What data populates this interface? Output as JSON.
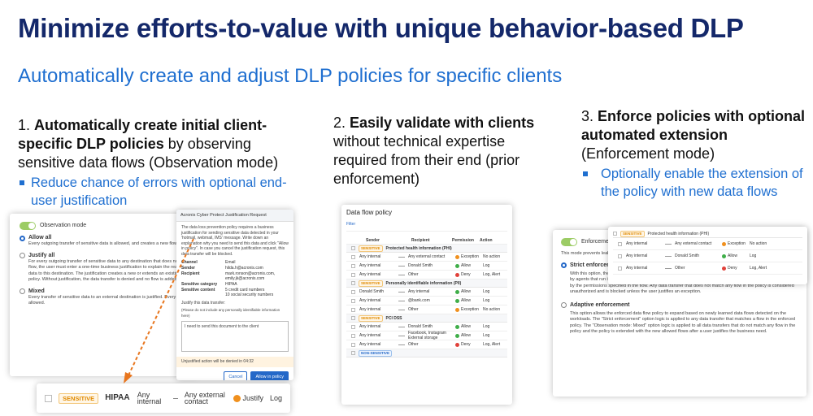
{
  "title": "Minimize efforts-to-value with unique behavior-based DLP",
  "subtitle": "Automatically create and adjust DLP policies for specific clients",
  "columns": [
    {
      "number": "1.",
      "bold": "Automatically create initial client-specific DLP policies",
      "text": "by observing sensitive data flows (Observation mode)",
      "bullet": "Reduce chance of errors with optional end-user justification"
    },
    {
      "number": "2.",
      "bold": "Easily validate with clients",
      "text": "without technical expertise required from their end (prior enforcement)"
    },
    {
      "number": "3.",
      "bold": "Enforce policies with optional automated extension",
      "text": "(Enforcement mode)",
      "bullet": "Optionally enable the extension of the policy with new data flows"
    }
  ],
  "permission_colors": {
    "Exception": "#f0901e",
    "Allow": "#3fae49",
    "Deny": "#e0413a",
    "Justify": "#f0901e"
  },
  "observation_panel": {
    "toggle_label": "Observation mode",
    "options": [
      {
        "label": "Allow all",
        "text": "Every outgoing transfer of sensitive data is allowed, and creates a new flow in the data flow policy."
      },
      {
        "label": "Justify all",
        "text": "For every outgoing transfer of sensitive data to any destination that does not match a created data flow, the user must enter a one-time business justification to explain the reason for transferring this data to this destination. The justification creates a new or extends an existing flow in the data flow policy. Without justification, the data transfer is denied and no flow is added."
      },
      {
        "label": "Mixed",
        "text": "Every transfer of sensitive data to an external destination is justified. Every internal transfer is allowed."
      }
    ]
  },
  "justification_dialog": {
    "title": "Acronis Cyber Protect Justification Request",
    "intro": "The data loss prevention policy requires a business justification for sending sensitive data detected in your 'hotmail, webmail, IMS' message. Write down an explanation why you need to send this data and click \"Allow in policy\". In case you cancel the justification request, this data transfer will be blocked.",
    "fields": [
      {
        "label": "Channel",
        "value": "Email"
      },
      {
        "label": "Sender",
        "value": "hilda.h@acronis.com"
      },
      {
        "label": "Recipient",
        "value": "mark.ronson@acronis.com,\nemily.jk@acronis.com"
      },
      {
        "label": "Sensitive category",
        "value": "HIPAA"
      },
      {
        "label": "Sensitive content",
        "value": "5 credit card numbers\n10 social security numbers"
      }
    ],
    "prompt": "Justify this data transfer:",
    "hint": "(Please do not include any personally identifiable information here)",
    "message": "I need to send this document to the client",
    "countdown": "Unjustified action will be denied in 04:32",
    "buttons": [
      "Cancel",
      "Allow in policy"
    ]
  },
  "zoom_row": {
    "tag": "SENSITIVE",
    "category": "HIPAA",
    "sender": "Any internal",
    "recipient": "Any external contact",
    "permission": "Justify",
    "action": "Log"
  },
  "data_flow_policy": {
    "title": "Data flow policy",
    "filter": "Filter",
    "headers": [
      "Sender",
      "Recipient",
      "Permission",
      "Action"
    ],
    "groups": [
      {
        "tag": "SENSITIVE",
        "name": "Protected health information (PHI)",
        "rows": [
          [
            "Any internal",
            "Any external contact",
            "Exception",
            "No action"
          ],
          [
            "Any internal",
            "Donald Smith",
            "Allow",
            "Log"
          ],
          [
            "Any internal",
            "Other",
            "Deny",
            "Log, Alert"
          ]
        ]
      },
      {
        "tag": "SENSITIVE",
        "name": "Personally identifiable information (PII)",
        "rows": [
          [
            "Donald Smith",
            "Any internal",
            "Allow",
            "Log"
          ],
          [
            "Any internal",
            "@bank.com",
            "Allow",
            "Log"
          ],
          [
            "Any internal",
            "Other",
            "Exception",
            "No action"
          ]
        ]
      },
      {
        "tag": "SENSITIVE",
        "name": "PCI DSS",
        "rows": [
          [
            "Any internal",
            "Donald Smith",
            "Allow",
            "Log"
          ],
          [
            "Any internal",
            "Facebook, Instagram\nExternal storage",
            "Allow",
            "Log"
          ],
          [
            "Any internal",
            "Other",
            "Deny",
            "Log, Alert"
          ]
        ]
      }
    ],
    "footer_tag": "NON-SENSITIVE"
  },
  "enforcement_panel": {
    "toggle_label": "Enforcement mode",
    "intro": "This mode prevents leakage of sensitive data according to the data flows and actions specified in the policy.",
    "options": [
      {
        "label": "Strict enforcement",
        "text": "With this option, the approved data flow policy is enforced as is—that is, without extending it with new flows detected by agents that run in the enforcement mode. Any data transfer that matches a flow in the enforced policy is controlled by the permissions specified in the flow. Any data transfer that does not match any flow in the policy is considered unauthorized and is blocked unless the user justifies an exception."
      },
      {
        "label": "Adaptive enforcement",
        "text": "This option allows the enforced data flow policy to expand based on newly learned data flows detected on the workloads. The \"Strict enforcement\" option logic is applied to any data transfer that matches a flow in the enforced policy. The \"Observation mode: Mixed\" option logic is applied to all data transfers that do not match any flow in the policy and the policy is extended with the new allowed flows after a user justifies the business need."
      }
    ],
    "overlay": {
      "tag": "SENSITIVE",
      "name": "Protected health information (PHI)",
      "rows": [
        [
          "Any internal",
          "Any external contact",
          "Exception",
          "No action"
        ],
        [
          "Any internal",
          "Donald Smith",
          "Allow",
          "Log"
        ],
        [
          "Any internal",
          "Other",
          "Deny",
          "Log, Alert"
        ]
      ]
    }
  }
}
